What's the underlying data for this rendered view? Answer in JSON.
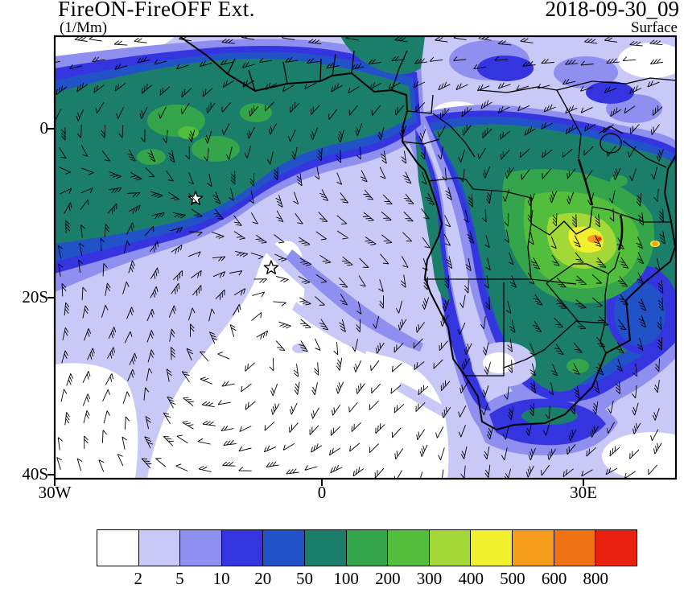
{
  "header": {
    "title": "FireON-FireOFF Ext.",
    "units": "(1/Mm)",
    "datetime": "2018-09-30_09",
    "level": "Surface"
  },
  "axes": {
    "y_ticks": [
      "0",
      "20S",
      "40S"
    ],
    "x_ticks": [
      "30W",
      "0",
      "30E"
    ]
  },
  "colorbar": {
    "levels": [
      "2",
      "5",
      "10",
      "20",
      "50",
      "100",
      "200",
      "300",
      "400",
      "500",
      "600",
      "800"
    ],
    "colors": [
      "#FFFFFF",
      "#C9C9F7",
      "#8F8FF0",
      "#3535E0",
      "#2152C8",
      "#1B7E6B",
      "#35A54B",
      "#52BE3C",
      "#A4D837",
      "#F2EF2F",
      "#F79C1D",
      "#F07313",
      "#E8220E"
    ]
  },
  "map": {
    "markers": [
      {
        "type": "star",
        "x": 243,
        "y": 247
      },
      {
        "type": "star",
        "x": 337,
        "y": 333
      }
    ]
  },
  "chart_data": {
    "type": "heatmap",
    "title": "FireON-FireOFF Ext.",
    "units": "(1/Mm)",
    "time": "2018-09-30_09",
    "level": "Surface",
    "x_ticks": [
      "30W",
      "0",
      "30E"
    ],
    "y_ticks": [
      "0",
      "20S",
      "40S"
    ],
    "contour_levels": [
      2,
      5,
      10,
      20,
      50,
      100,
      200,
      300,
      400,
      500,
      600,
      800
    ],
    "palette": [
      "#FFFFFF",
      "#C9C9F7",
      "#8F8FF0",
      "#3535E0",
      "#2152C8",
      "#1B7E6B",
      "#35A54B",
      "#52BE3C",
      "#A4D837",
      "#F2EF2F",
      "#F79C1D",
      "#F07313",
      "#E8220E"
    ],
    "legend_position": "bottom",
    "overlay": "wind barbs"
  }
}
